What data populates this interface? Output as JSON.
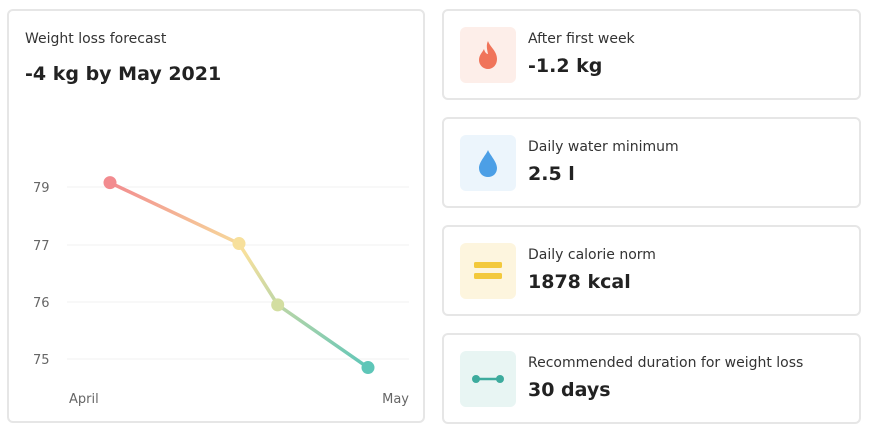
{
  "forecast": {
    "label": "Weight loss forecast",
    "value": "-4 kg by May 2021"
  },
  "chart_data": {
    "type": "line",
    "x_labels": [
      "April",
      "May"
    ],
    "y_ticks": [
      79,
      77,
      76,
      75
    ],
    "points": [
      {
        "x": 0.0,
        "y": 79.15
      },
      {
        "x": 0.5,
        "y": 77.05
      },
      {
        "x": 0.65,
        "y": 75.95
      },
      {
        "x": 1.0,
        "y": 74.85
      }
    ],
    "grid": true,
    "colors": [
      "#f28b8f",
      "#f7e09c",
      "#d3dea1",
      "#5ec6b8"
    ]
  },
  "stats": [
    {
      "label": "After first week",
      "value": "-1.2 kg",
      "icon": "flame-icon",
      "bg": "#fdeee9",
      "color": "#f0745a"
    },
    {
      "label": "Daily water minimum",
      "value": "2.5 l",
      "icon": "water-drop-icon",
      "bg": "#ecf5fc",
      "color": "#4c9fe6"
    },
    {
      "label": "Daily calorie norm",
      "value": "1878 kcal",
      "icon": "calorie-bars-icon",
      "bg": "#fdf5de",
      "color": "#f3c93c"
    },
    {
      "label": "Recommended duration for weight loss",
      "value": "30 days",
      "icon": "duration-icon",
      "bg": "#e8f5f3",
      "color": "#3dab9d"
    }
  ]
}
